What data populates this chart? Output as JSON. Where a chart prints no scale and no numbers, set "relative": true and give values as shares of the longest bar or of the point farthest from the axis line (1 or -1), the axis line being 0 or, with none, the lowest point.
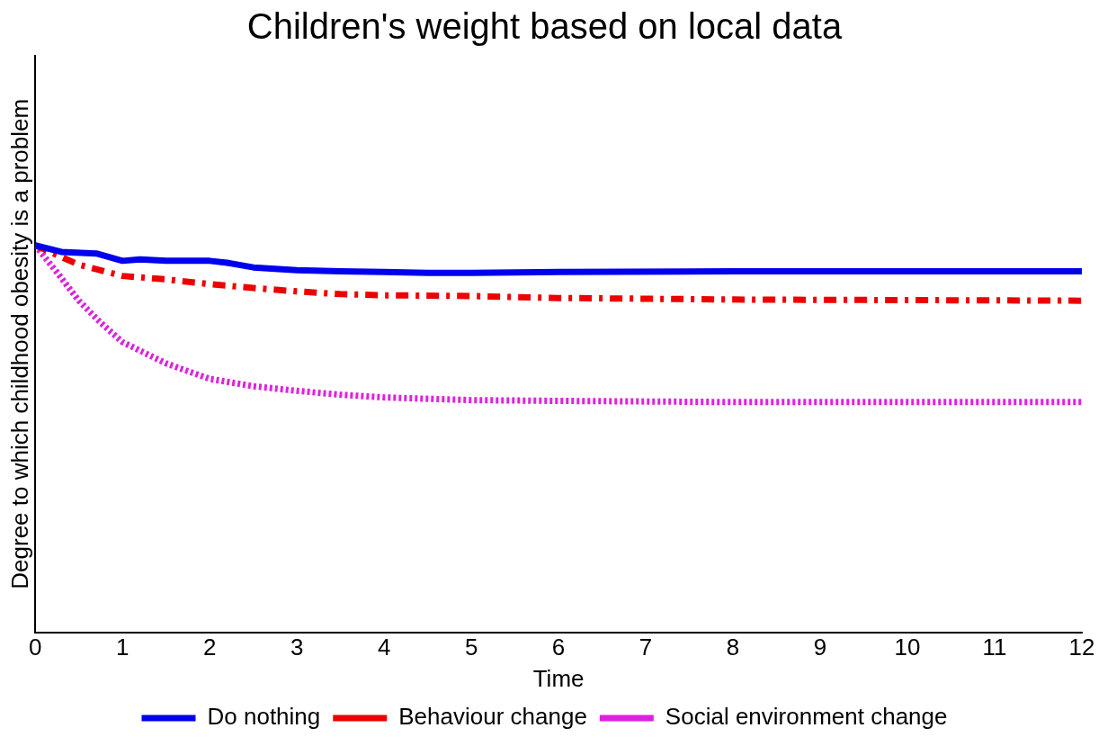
{
  "chart_data": {
    "type": "line",
    "title": "Children's weight based on local data",
    "xlabel": "Time",
    "ylabel": "Degree to which childhood obesity is a problem",
    "relative": true,
    "xlim": [
      0,
      12
    ],
    "xticks": [
      0,
      1,
      2,
      3,
      4,
      5,
      6,
      7,
      8,
      9,
      10,
      11,
      12
    ],
    "tick_labels": "x",
    "grid": false,
    "legend": "bottom",
    "marker": "none",
    "series": [
      {
        "name": "Do nothing",
        "color": "#0000ee",
        "line_style": "solid",
        "x": [
          0,
          0.3,
          0.7,
          1,
          1.2,
          1.5,
          2,
          2.2,
          2.5,
          3,
          3.5,
          4,
          4.5,
          5,
          6,
          8,
          12
        ],
        "values": [
          1,
          0.983,
          0.979,
          0.96,
          0.964,
          0.96,
          0.96,
          0.955,
          0.943,
          0.936,
          0.933,
          0.931,
          0.929,
          0.929,
          0.931,
          0.933,
          0.933
        ]
      },
      {
        "name": "Behaviour change",
        "color": "#ee0000",
        "line_style": "dashed",
        "x": [
          0,
          0.5,
          1,
          1.5,
          2,
          2.5,
          3,
          3.5,
          4,
          5,
          6,
          8,
          12
        ],
        "values": [
          1,
          0.95,
          0.921,
          0.912,
          0.9,
          0.89,
          0.881,
          0.874,
          0.871,
          0.869,
          0.864,
          0.86,
          0.857
        ]
      },
      {
        "name": "Social environment change",
        "color": "#dd22dd",
        "line_style": "dotted",
        "x": [
          0,
          0.25,
          0.5,
          0.75,
          1,
          1.5,
          2,
          2.5,
          3,
          3.5,
          4,
          5,
          6,
          8,
          12
        ],
        "values": [
          1,
          0.93,
          0.857,
          0.8,
          0.75,
          0.695,
          0.655,
          0.636,
          0.624,
          0.614,
          0.607,
          0.6,
          0.598,
          0.595,
          0.595
        ]
      }
    ]
  }
}
